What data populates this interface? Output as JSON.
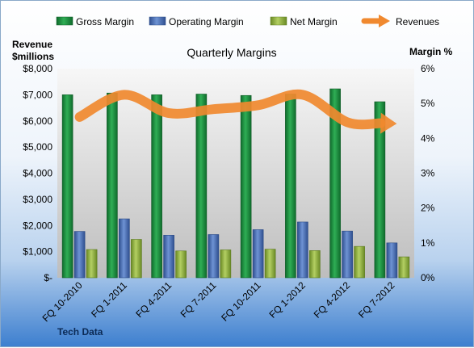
{
  "chart_data": {
    "type": "bar",
    "title": "Quarterly Margins",
    "categories": [
      "FQ 10-2010",
      "FQ 1-2011",
      "FQ 4-2011",
      "FQ 7-2011",
      "FQ 10-2011",
      "FQ 1-2012",
      "FQ 4-2012",
      "FQ 7-2012"
    ],
    "y_left": {
      "label_line1": "Revenue",
      "label_line2": "$millions",
      "min": 0,
      "max": 8000,
      "step": 1000,
      "tick_labels": [
        "$-",
        "$1,000",
        "$2,000",
        "$3,000",
        "$4,000",
        "$5,000",
        "$6,000",
        "$7,000",
        "$8,000"
      ]
    },
    "y_right": {
      "label": "Margin %",
      "min": 0,
      "max": 6,
      "step": 1,
      "tick_labels": [
        "0%",
        "1%",
        "2%",
        "3%",
        "4%",
        "5%",
        "6%"
      ]
    },
    "series": [
      {
        "name": "Gross Margin",
        "kind": "bar",
        "axis": "right",
        "color": "#1a8a3e",
        "values": [
          5.25,
          5.3,
          5.25,
          5.27,
          5.23,
          5.27,
          5.42,
          5.05
        ]
      },
      {
        "name": "Operating Margin",
        "kind": "bar",
        "axis": "right",
        "color": "#4a72b8",
        "values": [
          1.33,
          1.69,
          1.22,
          1.24,
          1.38,
          1.6,
          1.34,
          1.0
        ]
      },
      {
        "name": "Net Margin",
        "kind": "bar",
        "axis": "right",
        "color": "#8fb03e",
        "values": [
          0.81,
          1.1,
          0.77,
          0.8,
          0.82,
          0.78,
          0.9,
          0.6
        ]
      },
      {
        "name": "Revenues",
        "kind": "line",
        "axis": "left",
        "color": "#f0892f",
        "values": [
          6150,
          7000,
          6300,
          6450,
          6600,
          7000,
          5950,
          5900
        ]
      }
    ],
    "legend_position": "top",
    "grid": false,
    "footer": "Tech Data"
  }
}
